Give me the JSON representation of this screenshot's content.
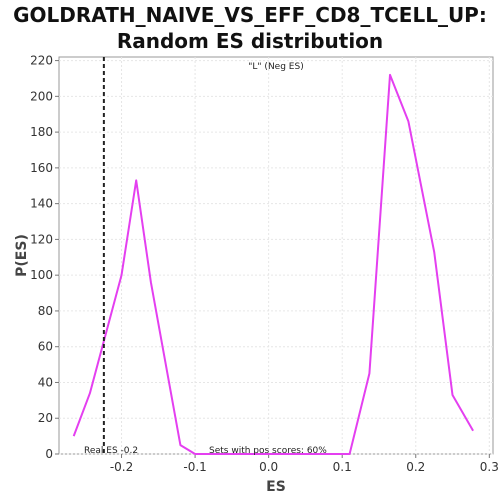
{
  "chart_data": {
    "type": "line",
    "title": [
      "GOLDRATH_NAIVE_VS_EFF_CD8_TCELL_UP:",
      "Random ES distribution"
    ],
    "xlabel": "ES",
    "ylabel": "P(ES)",
    "xlim": [
      -0.285,
      0.305
    ],
    "ylim": [
      0,
      222
    ],
    "xticks": [
      -0.2,
      -0.1,
      0.0,
      0.1,
      0.2,
      0.3
    ],
    "xtick_labels": [
      "-0.2",
      "-0.1",
      "0.0",
      "0.1",
      "0.2",
      "0.3"
    ],
    "yticks": [
      0,
      20,
      40,
      60,
      80,
      100,
      120,
      140,
      160,
      180,
      200,
      220
    ],
    "ytick_labels": [
      "0",
      "20",
      "40",
      "60",
      "80",
      "100",
      "120",
      "140",
      "160",
      "180",
      "200",
      "220"
    ],
    "grid": true,
    "series": [
      {
        "name": "\"L\" (Neg ES)",
        "color": "#e43ff0",
        "x": [
          -0.265,
          -0.243,
          -0.2,
          -0.18,
          -0.16,
          -0.12,
          -0.1,
          0.0,
          0.11,
          0.137,
          0.165,
          0.19,
          0.225,
          0.25,
          0.278
        ],
        "y": [
          10,
          34,
          100,
          153,
          96,
          5,
          0,
          0,
          0,
          45,
          212,
          186,
          113,
          33,
          13
        ]
      }
    ],
    "real_es_line": {
      "x": -0.224,
      "label": "Real ES -0.2"
    },
    "annotation": "Sets with pos scores: 60%",
    "legend_color": "#3a2bd6"
  }
}
